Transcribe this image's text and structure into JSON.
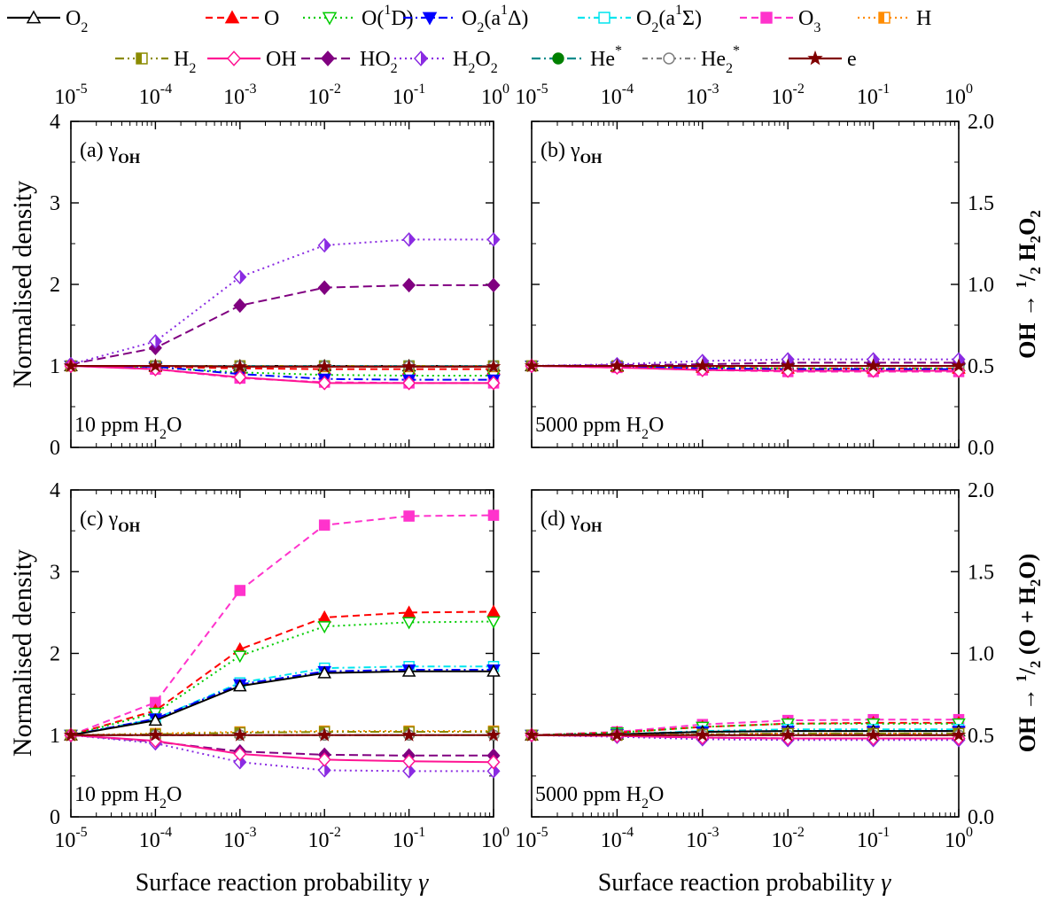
{
  "legend": [
    {
      "key": "O2",
      "label": "O",
      "sub": "2",
      "sup": "",
      "suffix": "",
      "color": "#000000",
      "dash": "",
      "marker": "triangle-up",
      "fill": "open"
    },
    {
      "key": "O",
      "label": "O",
      "sub": "",
      "sup": "",
      "suffix": "",
      "color": "#ff0000",
      "dash": "8,5",
      "marker": "triangle-up",
      "fill": "filled"
    },
    {
      "key": "O1D",
      "label": "O(",
      "sub": "",
      "sup": "1",
      "suffix": "D)",
      "color": "#00cc00",
      "dash": "2,4",
      "marker": "triangle-down",
      "fill": "open"
    },
    {
      "key": "O2a1Delta",
      "label": "O",
      "sub": "2",
      "sup": "",
      "suffix": "(a",
      "sup2": "1",
      "suffix2": "Δ)",
      "color": "#0000ff",
      "dash": "10,4,2,4",
      "marker": "triangle-down",
      "fill": "filled"
    },
    {
      "key": "O2a1Sigma",
      "label": "O",
      "sub": "2",
      "sup": "",
      "suffix": "(a",
      "sup2": "1",
      "suffix2": "Σ)",
      "color": "#00e5ee",
      "dash": "8,4,2,4",
      "marker": "square",
      "fill": "open"
    },
    {
      "key": "O3",
      "label": "O",
      "sub": "3",
      "sup": "",
      "suffix": "",
      "color": "#ff33cc",
      "dash": "8,5",
      "marker": "square",
      "fill": "filled"
    },
    {
      "key": "H",
      "label": "H",
      "sub": "",
      "sup": "",
      "suffix": "",
      "color": "#ff8c00",
      "dash": "2,4",
      "marker": "square",
      "fill": "half"
    },
    {
      "key": "H2",
      "label": "H",
      "sub": "2",
      "sup": "",
      "suffix": "",
      "color": "#8b8b00",
      "dash": "10,4,2,4,2,4",
      "marker": "square",
      "fill": "half"
    },
    {
      "key": "OH",
      "label": "OH",
      "sub": "",
      "sup": "",
      "suffix": "",
      "color": "#ff1493",
      "dash": "",
      "marker": "diamond",
      "fill": "open"
    },
    {
      "key": "HO2",
      "label": "HO",
      "sub": "2",
      "sup": "",
      "suffix": "",
      "color": "#800080",
      "dash": "10,5",
      "marker": "diamond",
      "fill": "filled"
    },
    {
      "key": "H2O2",
      "label": "H",
      "sub": "2",
      "sup": "",
      "suffix": "O",
      "sub2": "2",
      "color": "#8a2be2",
      "dash": "2,4",
      "marker": "diamond",
      "fill": "half"
    },
    {
      "key": "He*",
      "label": "He",
      "sub": "",
      "sup": "*",
      "suffix": "",
      "color": "#008000",
      "dash": "10,4,2,4",
      "marker": "circle",
      "fill": "filled",
      "line_color": "#008b8b"
    },
    {
      "key": "He2*",
      "label": "He",
      "sub": "2",
      "sup": "*",
      "suffix": "",
      "color": "#808080",
      "dash": "6,4,2,4",
      "marker": "circle",
      "fill": "open"
    },
    {
      "key": "e",
      "label": "e",
      "sub": "",
      "sup": "",
      "suffix": "",
      "color": "#800000",
      "dash": "",
      "marker": "star",
      "fill": "filled"
    }
  ],
  "x_ticks": [
    {
      "base": "10",
      "exp": "-5"
    },
    {
      "base": "10",
      "exp": "-4"
    },
    {
      "base": "10",
      "exp": "-3"
    },
    {
      "base": "10",
      "exp": "-2"
    },
    {
      "base": "10",
      "exp": "-1"
    },
    {
      "base": "10",
      "exp": "0"
    }
  ],
  "left_y_ticks": [
    "0",
    "1",
    "2",
    "3",
    "4"
  ],
  "right_y_ticks": [
    "0.0",
    "0.5",
    "1.0",
    "1.5",
    "2.0"
  ],
  "ylabel_left": "Normalised density",
  "ylabel_right_top": {
    "pre": "OH → ",
    "frac_num": "1",
    "frac_den": "2",
    "post": " H",
    "sub": "2",
    "post2": "O",
    "sub2": "2"
  },
  "ylabel_right_bottom": {
    "pre": "OH → ",
    "frac_num": "1",
    "frac_den": "2",
    "post": " (O + H",
    "sub": "2",
    "post2": "O)"
  },
  "xlabel": {
    "text": "Surface reaction probability  ",
    "symbol": "γ"
  },
  "chart_data": [
    {
      "panel": "a",
      "type": "line",
      "title": "(a) γ",
      "title_sub": "OH",
      "note": "10 ppm H",
      "note_sub": "2",
      "note_post": "O",
      "x": [
        1e-05,
        0.0001,
        0.001,
        0.01,
        0.1,
        1
      ],
      "xscale": "log",
      "xlim": [
        1e-05,
        1
      ],
      "ylim": [
        0,
        4
      ],
      "series": [
        {
          "name": "O2",
          "values": [
            1,
            1,
            1,
            1,
            1,
            1
          ]
        },
        {
          "name": "O",
          "values": [
            1,
            0.99,
            0.97,
            0.96,
            0.96,
            0.96
          ]
        },
        {
          "name": "O(1D)",
          "values": [
            1,
            0.98,
            0.92,
            0.89,
            0.88,
            0.88
          ]
        },
        {
          "name": "O2(a1Δ)",
          "values": [
            1,
            0.99,
            0.9,
            0.84,
            0.83,
            0.83
          ]
        },
        {
          "name": "O2(a1Σ)",
          "values": [
            1,
            1,
            1,
            1,
            1,
            1
          ]
        },
        {
          "name": "O3",
          "values": [
            1,
            0.96,
            0.85,
            0.8,
            0.79,
            0.79
          ]
        },
        {
          "name": "H",
          "values": [
            1,
            1,
            1,
            0.99,
            0.99,
            0.99
          ]
        },
        {
          "name": "H2",
          "values": [
            1,
            1,
            1,
            1,
            1,
            1
          ]
        },
        {
          "name": "OH",
          "values": [
            1,
            0.96,
            0.86,
            0.79,
            0.79,
            0.79
          ]
        },
        {
          "name": "HO2",
          "values": [
            1.02,
            1.22,
            1.74,
            1.96,
            1.99,
            1.99
          ]
        },
        {
          "name": "H2O2",
          "values": [
            1.02,
            1.3,
            2.09,
            2.48,
            2.55,
            2.55
          ]
        },
        {
          "name": "He*",
          "values": [
            1,
            1,
            1,
            1,
            1,
            1
          ]
        },
        {
          "name": "He2*",
          "values": [
            1,
            1,
            1,
            1,
            1,
            1
          ]
        },
        {
          "name": "e",
          "values": [
            1,
            1,
            0.99,
            0.99,
            0.99,
            0.99
          ]
        }
      ]
    },
    {
      "panel": "b",
      "type": "line",
      "title": "(b) γ",
      "title_sub": "OH",
      "note": "5000 ppm H",
      "note_sub": "2",
      "note_post": "O",
      "x": [
        1e-05,
        0.0001,
        0.001,
        0.01,
        0.1,
        1
      ],
      "xscale": "log",
      "xlim": [
        1e-05,
        1
      ],
      "ylim": [
        0,
        4
      ],
      "series": [
        {
          "name": "O2",
          "values": [
            1,
            1,
            1,
            1,
            1,
            1
          ]
        },
        {
          "name": "O",
          "values": [
            1,
            0.99,
            0.98,
            0.97,
            0.97,
            0.97
          ]
        },
        {
          "name": "O(1D)",
          "values": [
            1,
            0.99,
            0.98,
            0.97,
            0.97,
            0.97
          ]
        },
        {
          "name": "O2(a1Δ)",
          "values": [
            1,
            0.99,
            0.97,
            0.96,
            0.96,
            0.96
          ]
        },
        {
          "name": "O2(a1Σ)",
          "values": [
            1,
            1,
            1,
            1,
            1,
            1
          ]
        },
        {
          "name": "O3",
          "values": [
            1,
            0.98,
            0.95,
            0.93,
            0.93,
            0.93
          ]
        },
        {
          "name": "H",
          "values": [
            1,
            1,
            1,
            1,
            1,
            1
          ]
        },
        {
          "name": "H2",
          "values": [
            1,
            1,
            1,
            1,
            1,
            1
          ]
        },
        {
          "name": "OH",
          "values": [
            1,
            0.98,
            0.95,
            0.94,
            0.94,
            0.94
          ]
        },
        {
          "name": "HO2",
          "values": [
            1,
            1.01,
            1.02,
            1.04,
            1.04,
            1.04
          ]
        },
        {
          "name": "H2O2",
          "values": [
            1,
            1.02,
            1.06,
            1.08,
            1.08,
            1.08
          ]
        },
        {
          "name": "He*",
          "values": [
            1,
            1,
            1,
            1,
            1,
            1
          ]
        },
        {
          "name": "He2*",
          "values": [
            1,
            1,
            1,
            1,
            1,
            1
          ]
        },
        {
          "name": "e",
          "values": [
            1,
            1,
            1,
            1,
            1,
            1
          ]
        }
      ]
    },
    {
      "panel": "c",
      "type": "line",
      "title": "(c) γ",
      "title_sub": "OH",
      "note": "10 ppm H",
      "note_sub": "2",
      "note_post": "O",
      "x": [
        1e-05,
        0.0001,
        0.001,
        0.01,
        0.1,
        1
      ],
      "xscale": "log",
      "xlim": [
        1e-05,
        1
      ],
      "ylim": [
        0,
        4
      ],
      "series": [
        {
          "name": "O2",
          "values": [
            1,
            1.18,
            1.6,
            1.76,
            1.78,
            1.78
          ]
        },
        {
          "name": "O",
          "values": [
            1,
            1.3,
            2.05,
            2.44,
            2.5,
            2.51
          ]
        },
        {
          "name": "O(1D)",
          "values": [
            1,
            1.27,
            1.97,
            2.33,
            2.38,
            2.39
          ]
        },
        {
          "name": "O2(a1Δ)",
          "values": [
            1,
            1.2,
            1.62,
            1.78,
            1.8,
            1.8
          ]
        },
        {
          "name": "O2(a1Σ)",
          "values": [
            1,
            1.2,
            1.64,
            1.82,
            1.84,
            1.84
          ]
        },
        {
          "name": "O3",
          "values": [
            1,
            1.4,
            2.77,
            3.57,
            3.68,
            3.69
          ]
        },
        {
          "name": "H",
          "values": [
            1,
            1.02,
            1.04,
            1.05,
            1.05,
            1.05
          ]
        },
        {
          "name": "H2",
          "values": [
            1,
            1.01,
            1.03,
            1.04,
            1.04,
            1.04
          ]
        },
        {
          "name": "OH",
          "values": [
            1,
            0.93,
            0.77,
            0.7,
            0.68,
            0.67
          ]
        },
        {
          "name": "HO2",
          "values": [
            1,
            0.92,
            0.8,
            0.76,
            0.75,
            0.75
          ]
        },
        {
          "name": "H2O2",
          "values": [
            1,
            0.9,
            0.67,
            0.57,
            0.56,
            0.56
          ]
        },
        {
          "name": "He*",
          "values": [
            1,
            1,
            1,
            1,
            1,
            1
          ]
        },
        {
          "name": "He2*",
          "values": [
            1,
            1,
            1,
            1,
            1,
            1
          ]
        },
        {
          "name": "e",
          "values": [
            1,
            1,
            1,
            1,
            1,
            1
          ]
        }
      ]
    },
    {
      "panel": "d",
      "type": "line",
      "title": "(d) γ",
      "title_sub": "OH",
      "note": "5000 ppm H",
      "note_sub": "2",
      "note_post": "O",
      "x": [
        1e-05,
        0.0001,
        0.001,
        0.01,
        0.1,
        1
      ],
      "xscale": "log",
      "xlim": [
        1e-05,
        1
      ],
      "ylim": [
        0,
        4
      ],
      "series": [
        {
          "name": "O2",
          "values": [
            1,
            1.01,
            1.04,
            1.05,
            1.05,
            1.05
          ]
        },
        {
          "name": "O",
          "values": [
            1,
            1.03,
            1.1,
            1.14,
            1.15,
            1.15
          ]
        },
        {
          "name": "O(1D)",
          "values": [
            1,
            1.03,
            1.1,
            1.14,
            1.14,
            1.14
          ]
        },
        {
          "name": "O2(a1Δ)",
          "values": [
            1,
            1.01,
            1.04,
            1.05,
            1.05,
            1.05
          ]
        },
        {
          "name": "O2(a1Σ)",
          "values": [
            1,
            1.01,
            1.05,
            1.07,
            1.07,
            1.07
          ]
        },
        {
          "name": "O3",
          "values": [
            1,
            1.04,
            1.13,
            1.18,
            1.19,
            1.19
          ]
        },
        {
          "name": "H",
          "values": [
            1,
            1,
            1.01,
            1.02,
            1.02,
            1.02
          ]
        },
        {
          "name": "H2",
          "values": [
            1,
            1,
            1.01,
            1.02,
            1.02,
            1.02
          ]
        },
        {
          "name": "OH",
          "values": [
            1,
            0.99,
            0.97,
            0.96,
            0.96,
            0.96
          ]
        },
        {
          "name": "HO2",
          "values": [
            1,
            0.99,
            0.97,
            0.96,
            0.96,
            0.96
          ]
        },
        {
          "name": "H2O2",
          "values": [
            1,
            0.98,
            0.95,
            0.94,
            0.94,
            0.94
          ]
        },
        {
          "name": "He*",
          "values": [
            1,
            1,
            1,
            1,
            1,
            1
          ]
        },
        {
          "name": "He2*",
          "values": [
            1,
            1,
            1,
            1,
            1,
            1
          ]
        },
        {
          "name": "e",
          "values": [
            1,
            1,
            1,
            1,
            1,
            1
          ]
        }
      ]
    }
  ]
}
